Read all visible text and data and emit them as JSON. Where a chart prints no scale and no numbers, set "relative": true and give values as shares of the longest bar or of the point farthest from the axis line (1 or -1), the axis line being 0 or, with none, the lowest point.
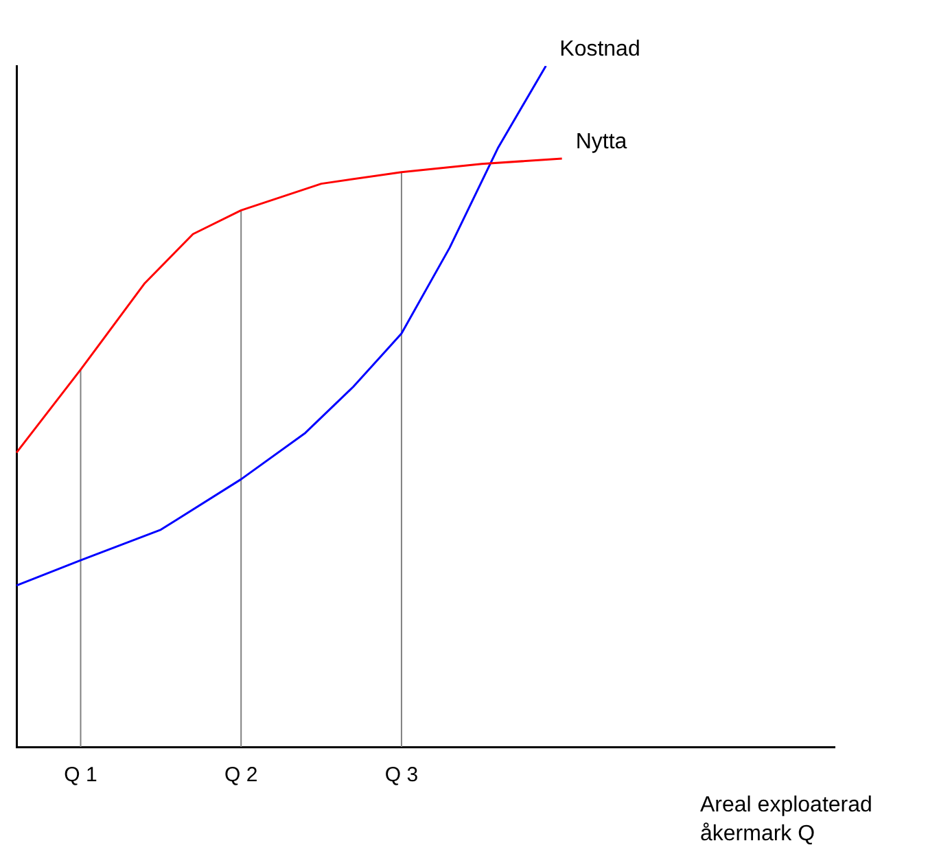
{
  "chart_data": {
    "type": "line",
    "relative": true,
    "xlabel": "Areal exploaterad åkermark  Q",
    "legend": false,
    "grid": false,
    "marker": "none",
    "categories": [
      null,
      null,
      null,
      null,
      "Q 1",
      null,
      null,
      null,
      null,
      null,
      null,
      null,
      null,
      null,
      "Q 2",
      null,
      null,
      null,
      null,
      null,
      null,
      null,
      null,
      null,
      "Q 3",
      null,
      null,
      null,
      null,
      null,
      null,
      null,
      null,
      null,
      null,
      null,
      null,
      null,
      null,
      null,
      null,
      null,
      null,
      null,
      null,
      null,
      null,
      null,
      null,
      null,
      null,
      null
    ],
    "series": [
      {
        "name": "Nytta",
        "color": "#ff0000",
        "values": [
          0.432,
          null,
          null,
          null,
          0.554,
          null,
          null,
          null,
          0.681,
          null,
          null,
          0.753,
          null,
          null,
          0.788,
          null,
          null,
          null,
          null,
          0.827,
          null,
          null,
          null,
          null,
          0.844,
          null,
          null,
          null,
          null,
          0.856,
          null,
          null,
          null,
          null,
          0.864,
          null,
          null,
          null,
          null,
          null,
          null,
          null,
          null,
          null,
          null,
          null,
          null,
          null,
          null,
          null,
          null,
          null
        ]
      },
      {
        "name": "Kostnad",
        "color": "#0000ff",
        "values": [
          0.237,
          null,
          null,
          null,
          0.274,
          null,
          null,
          null,
          null,
          0.319,
          null,
          null,
          null,
          null,
          0.393,
          null,
          null,
          null,
          0.461,
          null,
          null,
          0.529,
          null,
          null,
          0.607,
          null,
          null,
          0.733,
          null,
          null,
          0.879,
          null,
          null,
          1,
          null,
          null,
          null,
          null,
          null,
          null,
          null,
          null,
          null,
          null,
          null,
          null,
          null,
          null,
          null,
          null,
          null,
          null
        ]
      }
    ],
    "ref_lines": [
      {
        "axis": "x",
        "value": "Q 1",
        "color": "#808080"
      },
      {
        "axis": "x",
        "value": "Q 2",
        "color": "#808080"
      },
      {
        "axis": "x",
        "value": "Q 3",
        "color": "#808080"
      }
    ]
  }
}
